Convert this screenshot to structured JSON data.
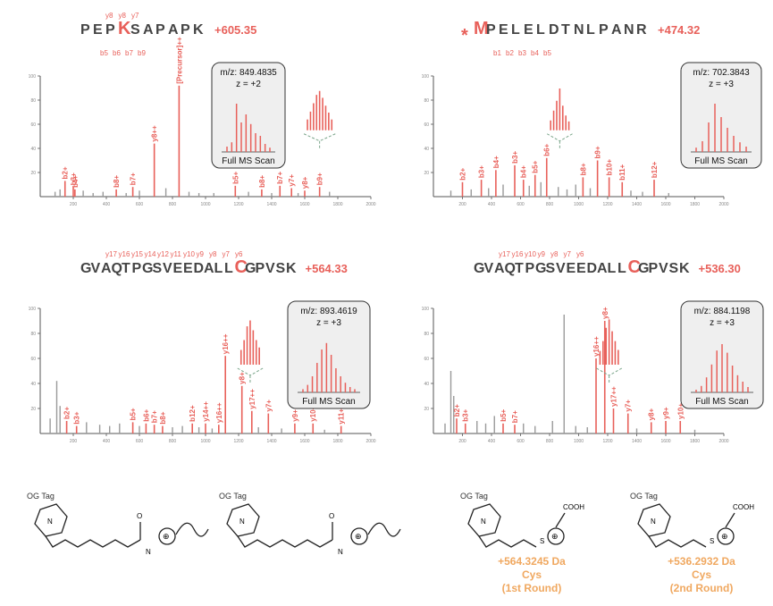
{
  "colors": {
    "fragment": "#e8605a",
    "other": "#8a8a8a",
    "tag": "#f0a860",
    "inset_bg": "#efefef",
    "cluster_link": "#7aa58a"
  },
  "chart_data": [
    {
      "type": "bar",
      "precursor_label": "+605.35",
      "sequence": [
        "P",
        "E",
        "P",
        "K",
        "S",
        "A",
        "P",
        "A",
        "P",
        "K"
      ],
      "highlight_index": 3,
      "marker": "",
      "seq_above": [
        "y8",
        "y8",
        "y7"
      ],
      "seq_below": [
        "b5",
        "b6",
        "b7",
        "b9"
      ],
      "xlim": [
        0,
        2000
      ],
      "ylim": [
        0,
        100
      ],
      "xticks": [
        "200",
        "400",
        "600",
        "800",
        "1000",
        "1200",
        "1400",
        "1600",
        "1800",
        "2000"
      ],
      "yticks": [
        "100",
        "80",
        "60",
        "40",
        "20"
      ],
      "peaks_matched": [
        {
          "x": 150,
          "y": 13,
          "label": "b2+"
        },
        {
          "x": 200,
          "y": 8,
          "label": "b3+"
        },
        {
          "x": 210,
          "y": 6,
          "label": "b4+"
        },
        {
          "x": 460,
          "y": 6,
          "label": "b8+"
        },
        {
          "x": 560,
          "y": 8,
          "label": "b7+"
        },
        {
          "x": 690,
          "y": 44,
          "label": "y8++"
        },
        {
          "x": 840,
          "y": 92,
          "label": "[Precursor]++"
        },
        {
          "x": 1180,
          "y": 9,
          "label": "b5+"
        },
        {
          "x": 1340,
          "y": 6,
          "label": "b8+"
        },
        {
          "x": 1450,
          "y": 9,
          "label": "b7+"
        },
        {
          "x": 1520,
          "y": 7,
          "label": "y7+"
        },
        {
          "x": 1600,
          "y": 5,
          "label": "y8+"
        },
        {
          "x": 1690,
          "y": 8,
          "label": "b9+"
        }
      ],
      "peaks_unmatched": [
        {
          "x": 90,
          "y": 4
        },
        {
          "x": 120,
          "y": 6
        },
        {
          "x": 260,
          "y": 5
        },
        {
          "x": 320,
          "y": 3
        },
        {
          "x": 380,
          "y": 4
        },
        {
          "x": 520,
          "y": 3
        },
        {
          "x": 600,
          "y": 5
        },
        {
          "x": 760,
          "y": 7
        },
        {
          "x": 900,
          "y": 4
        },
        {
          "x": 960,
          "y": 3
        },
        {
          "x": 1050,
          "y": 3
        },
        {
          "x": 1260,
          "y": 4
        },
        {
          "x": 1400,
          "y": 3
        },
        {
          "x": 1560,
          "y": 3
        },
        {
          "x": 1750,
          "y": 4
        }
      ],
      "cluster": {
        "x": 1690,
        "heights": [
          22,
          38,
          55,
          72,
          80,
          66,
          50,
          36,
          22
        ]
      },
      "inset": {
        "mz": "m/z: 849.4835",
        "z": "z = +2",
        "caption": "Full MS Scan",
        "heights": [
          10,
          18,
          90,
          55,
          70,
          52,
          35,
          30,
          15,
          8
        ]
      }
    },
    {
      "type": "bar",
      "precursor_label": "+474.32",
      "sequence": [
        "M",
        "P",
        "E",
        "L",
        "E",
        "L",
        "D",
        "T",
        "N",
        "L",
        "P",
        "A",
        "N",
        "R"
      ],
      "highlight_index": 0,
      "marker": "*",
      "seq_above": [],
      "seq_below": [
        "b1",
        "b2",
        "b3",
        "b4",
        "b5"
      ],
      "xlim": [
        0,
        2000
      ],
      "ylim": [
        0,
        100
      ],
      "xticks": [
        "200",
        "400",
        "600",
        "800",
        "1000",
        "1200",
        "1400",
        "1600",
        "1800",
        "2000"
      ],
      "yticks": [
        "100",
        "80",
        "60",
        "40",
        "20"
      ],
      "peaks_matched": [
        {
          "x": 200,
          "y": 12,
          "label": "b2+"
        },
        {
          "x": 330,
          "y": 14,
          "label": "b3+"
        },
        {
          "x": 430,
          "y": 22,
          "label": "b4+"
        },
        {
          "x": 560,
          "y": 26,
          "label": "b3+"
        },
        {
          "x": 620,
          "y": 14,
          "label": "b4+"
        },
        {
          "x": 700,
          "y": 18,
          "label": "b5+"
        },
        {
          "x": 780,
          "y": 32,
          "label": "b6+"
        },
        {
          "x": 1030,
          "y": 16,
          "label": "b8+"
        },
        {
          "x": 1130,
          "y": 30,
          "label": "b9+"
        },
        {
          "x": 1210,
          "y": 16,
          "label": "b10+"
        },
        {
          "x": 1300,
          "y": 12,
          "label": "b11+"
        },
        {
          "x": 1520,
          "y": 14,
          "label": "b12+"
        }
      ],
      "peaks_unmatched": [
        {
          "x": 120,
          "y": 5
        },
        {
          "x": 260,
          "y": 6
        },
        {
          "x": 380,
          "y": 7
        },
        {
          "x": 480,
          "y": 10
        },
        {
          "x": 660,
          "y": 9
        },
        {
          "x": 740,
          "y": 12
        },
        {
          "x": 860,
          "y": 8
        },
        {
          "x": 920,
          "y": 6
        },
        {
          "x": 980,
          "y": 10
        },
        {
          "x": 1080,
          "y": 7
        },
        {
          "x": 1360,
          "y": 5
        },
        {
          "x": 1440,
          "y": 4
        },
        {
          "x": 1620,
          "y": 3
        }
      ],
      "cluster": {
        "x": 870,
        "heights": [
          20,
          40,
          60,
          85,
          50,
          30,
          18
        ]
      },
      "inset": {
        "mz": "m/z: 702.3843",
        "z": "z = +3",
        "caption": "Full MS Scan",
        "heights": [
          8,
          20,
          55,
          90,
          65,
          45,
          30,
          18,
          10
        ]
      }
    },
    {
      "type": "bar",
      "precursor_label": "+564.33",
      "sequence": [
        "G",
        "V",
        "A",
        "Q",
        "T",
        "P",
        "G",
        "S",
        "V",
        "E",
        "E",
        "D",
        "A",
        "L",
        "L",
        "C",
        "G",
        "P",
        "V",
        "S",
        "K"
      ],
      "highlight_index": 15,
      "marker": "",
      "seq_above": [
        "y17",
        "y16",
        "y15",
        "y14",
        "y12",
        "y11",
        "y10",
        "y9",
        "y8",
        "y7",
        "y6"
      ],
      "seq_below": [],
      "xlim": [
        0,
        2000
      ],
      "ylim": [
        0,
        100
      ],
      "xticks": [
        "200",
        "400",
        "600",
        "800",
        "1000",
        "1200",
        "1400",
        "1600",
        "1800",
        "2000"
      ],
      "yticks": [
        "100",
        "80",
        "60",
        "40",
        "20"
      ],
      "peaks_matched": [
        {
          "x": 160,
          "y": 10,
          "label": "b2+"
        },
        {
          "x": 220,
          "y": 6,
          "label": "b3+"
        },
        {
          "x": 560,
          "y": 9,
          "label": "b5+"
        },
        {
          "x": 640,
          "y": 8,
          "label": "b6+"
        },
        {
          "x": 690,
          "y": 7,
          "label": "b7+"
        },
        {
          "x": 740,
          "y": 6,
          "label": "b8+"
        },
        {
          "x": 920,
          "y": 8,
          "label": "b12+"
        },
        {
          "x": 1000,
          "y": 8,
          "label": "y14++"
        },
        {
          "x": 1080,
          "y": 7,
          "label": "y16++"
        },
        {
          "x": 1120,
          "y": 62,
          "label": "y16++"
        },
        {
          "x": 1220,
          "y": 38,
          "label": "y8+"
        },
        {
          "x": 1280,
          "y": 18,
          "label": "y17++"
        },
        {
          "x": 1380,
          "y": 16,
          "label": "y7+"
        },
        {
          "x": 1540,
          "y": 8,
          "label": "y9+"
        },
        {
          "x": 1650,
          "y": 8,
          "label": "y10+"
        },
        {
          "x": 1820,
          "y": 6,
          "label": "y11+"
        }
      ],
      "peaks_unmatched": [
        {
          "x": 60,
          "y": 12
        },
        {
          "x": 100,
          "y": 42
        },
        {
          "x": 120,
          "y": 22
        },
        {
          "x": 280,
          "y": 9
        },
        {
          "x": 360,
          "y": 7
        },
        {
          "x": 420,
          "y": 6
        },
        {
          "x": 480,
          "y": 8
        },
        {
          "x": 600,
          "y": 6
        },
        {
          "x": 800,
          "y": 5
        },
        {
          "x": 860,
          "y": 6
        },
        {
          "x": 960,
          "y": 5
        },
        {
          "x": 1040,
          "y": 4
        },
        {
          "x": 1320,
          "y": 5
        },
        {
          "x": 1460,
          "y": 4
        },
        {
          "x": 1720,
          "y": 3
        }
      ],
      "cluster": {
        "x": 1270,
        "heights": [
          30,
          50,
          78,
          90,
          70,
          50,
          35
        ]
      },
      "inset": {
        "mz": "m/z: 893.4619",
        "z": "z = +3",
        "caption": "Full MS Scan",
        "heights": [
          6,
          14,
          30,
          55,
          80,
          92,
          70,
          45,
          30,
          18,
          10,
          6
        ]
      }
    },
    {
      "type": "bar",
      "precursor_label": "+536.30",
      "sequence": [
        "G",
        "V",
        "A",
        "Q",
        "T",
        "P",
        "G",
        "S",
        "V",
        "E",
        "E",
        "D",
        "A",
        "L",
        "L",
        "C",
        "G",
        "P",
        "V",
        "S",
        "K"
      ],
      "highlight_index": 15,
      "marker": "",
      "seq_above": [
        "y17",
        "y16",
        "y10",
        "y9",
        "y8",
        "y7",
        "y6"
      ],
      "seq_below": [],
      "xlim": [
        0,
        2000
      ],
      "ylim": [
        0,
        100
      ],
      "xticks": [
        "200",
        "400",
        "600",
        "800",
        "1000",
        "1200",
        "1400",
        "1600",
        "1800",
        "2000"
      ],
      "yticks": [
        "100",
        "80",
        "60",
        "40",
        "20"
      ],
      "peaks_matched": [
        {
          "x": 160,
          "y": 12,
          "label": "b2+"
        },
        {
          "x": 220,
          "y": 8,
          "label": "b3+"
        },
        {
          "x": 480,
          "y": 8,
          "label": "b5+"
        },
        {
          "x": 560,
          "y": 7,
          "label": "b7+"
        },
        {
          "x": 1120,
          "y": 60,
          "label": "y16++"
        },
        {
          "x": 1180,
          "y": 90,
          "label": "y8+"
        },
        {
          "x": 1240,
          "y": 20,
          "label": "y17++"
        },
        {
          "x": 1340,
          "y": 16,
          "label": "y7+"
        },
        {
          "x": 1500,
          "y": 9,
          "label": "y8+"
        },
        {
          "x": 1600,
          "y": 10,
          "label": "y9+"
        },
        {
          "x": 1700,
          "y": 10,
          "label": "y10+"
        }
      ],
      "peaks_unmatched": [
        {
          "x": 80,
          "y": 8
        },
        {
          "x": 120,
          "y": 50
        },
        {
          "x": 140,
          "y": 30
        },
        {
          "x": 300,
          "y": 10
        },
        {
          "x": 360,
          "y": 8
        },
        {
          "x": 420,
          "y": 14
        },
        {
          "x": 620,
          "y": 8
        },
        {
          "x": 700,
          "y": 6
        },
        {
          "x": 820,
          "y": 10
        },
        {
          "x": 900,
          "y": 95
        },
        {
          "x": 980,
          "y": 6
        },
        {
          "x": 1060,
          "y": 5
        },
        {
          "x": 1400,
          "y": 4
        },
        {
          "x": 1800,
          "y": 3
        }
      ],
      "cluster": {
        "x": 1210,
        "heights": [
          28,
          48,
          75,
          92,
          68,
          48,
          30
        ]
      },
      "inset": {
        "mz": "m/z: 884.1198",
        "z": "z = +3",
        "caption": "Full MS Scan",
        "heights": [
          5,
          12,
          28,
          52,
          78,
          90,
          74,
          50,
          32,
          20,
          10
        ]
      }
    }
  ],
  "structures": [
    {
      "tag": "OG Tag",
      "label_lines": []
    },
    {
      "tag": "OG Tag",
      "label_lines": []
    },
    {
      "tag": "OG Tag",
      "label_lines": [
        "+564.3245 Da",
        "Cys",
        "(1st Round)"
      ]
    },
    {
      "tag": "OG Tag",
      "label_lines": [
        "+536.2932 Da",
        "Cys",
        "(2nd Round)"
      ]
    }
  ],
  "structure_atoms": {
    "cooh": "COOH",
    "oplus": "⊕",
    "n": "N",
    "o": "O",
    "s": "S"
  }
}
